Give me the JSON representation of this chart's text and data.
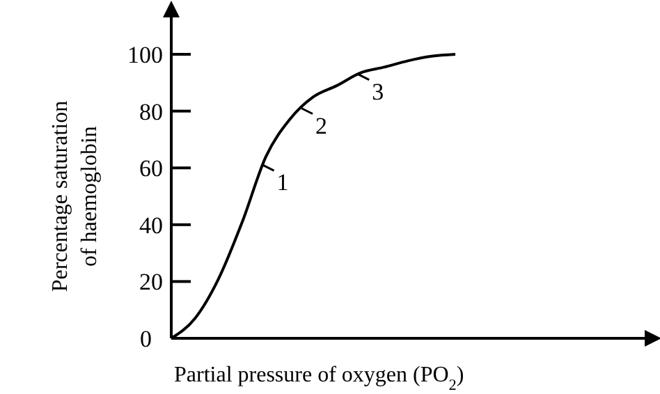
{
  "chart_data": {
    "type": "line",
    "ylabel": "Percentage saturation\nof haemoglobin",
    "xlabel": "Partial pressure of oxygen (PO$_{2}$)",
    "categories": [
      null,
      null,
      null,
      null,
      null,
      null,
      null,
      null,
      null,
      null,
      null,
      null,
      null
    ],
    "series": [
      {
        "color": "#000000",
        "values": [
          0,
          7,
          21,
          41,
          64,
          77,
          85,
          89,
          93.5,
          95.5,
          97.7,
          99.3,
          100
        ]
      }
    ],
    "ylim": [
      0,
      114
    ],
    "yticks": [
      0,
      20,
      40,
      60,
      80,
      100
    ],
    "grid": false,
    "marker": "none",
    "line_style": "solid",
    "annotations": [
      "1",
      "2",
      "3"
    ]
  }
}
